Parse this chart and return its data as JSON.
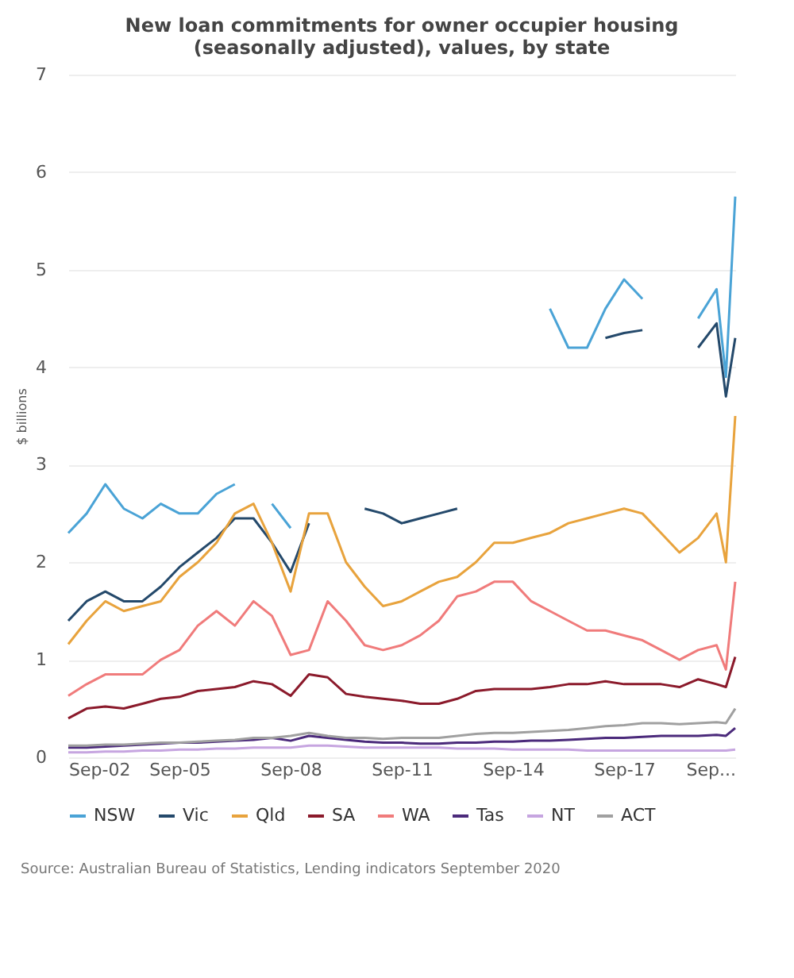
{
  "chart_data": {
    "type": "line",
    "title": [
      "New loan commitments for owner occupier housing",
      "(seasonally adjusted), values, by state"
    ],
    "ylabel": "$ billions",
    "x": [
      "2002-09",
      "2003-03",
      "2003-09",
      "2004-03",
      "2004-09",
      "2005-03",
      "2005-09",
      "2006-03",
      "2006-09",
      "2007-03",
      "2007-09",
      "2008-03",
      "2008-09",
      "2009-03",
      "2009-09",
      "2010-03",
      "2010-09",
      "2011-03",
      "2011-09",
      "2012-03",
      "2012-09",
      "2013-03",
      "2013-09",
      "2014-03",
      "2014-09",
      "2015-03",
      "2015-09",
      "2016-03",
      "2016-09",
      "2017-03",
      "2017-09",
      "2018-03",
      "2018-09",
      "2019-03",
      "2019-09",
      "2020-03",
      "2020-06",
      "2020-09"
    ],
    "series": [
      {
        "name": "NSW",
        "color": "#4aa3d6",
        "values": [
          2.3,
          2.5,
          2.8,
          2.55,
          2.45,
          2.6,
          2.5,
          2.5,
          2.7,
          2.8,
          null,
          2.6,
          2.35,
          null,
          null,
          null,
          null,
          null,
          null,
          null,
          null,
          null,
          null,
          null,
          null,
          null,
          4.6,
          4.2,
          4.2,
          4.6,
          4.9,
          4.7,
          null,
          null,
          4.5,
          4.8,
          3.9,
          5.75
        ]
      },
      {
        "name": "Vic",
        "color": "#24496b",
        "values": [
          1.4,
          1.6,
          1.7,
          1.6,
          1.6,
          1.75,
          1.95,
          2.1,
          2.25,
          2.45,
          2.45,
          2.2,
          1.9,
          2.4,
          null,
          null,
          2.55,
          2.5,
          2.4,
          2.45,
          2.5,
          2.55,
          null,
          null,
          null,
          null,
          null,
          null,
          null,
          4.3,
          4.35,
          4.38,
          null,
          null,
          4.2,
          4.45,
          3.7,
          4.3
        ]
      },
      {
        "name": "Qld",
        "color": "#e8a33d",
        "values": [
          1.16,
          1.4,
          1.6,
          1.5,
          1.55,
          1.6,
          1.85,
          2.0,
          2.2,
          2.5,
          2.6,
          2.2,
          1.7,
          2.5,
          2.5,
          2.0,
          1.75,
          1.55,
          1.6,
          1.7,
          1.8,
          1.85,
          2.0,
          2.2,
          2.2,
          2.25,
          2.3,
          2.4,
          2.45,
          2.5,
          2.55,
          2.5,
          2.3,
          2.1,
          2.25,
          2.5,
          2.0,
          3.5
        ]
      },
      {
        "name": "SA",
        "color": "#8b1a2b",
        "values": [
          0.4,
          0.5,
          0.52,
          0.5,
          0.55,
          0.6,
          0.62,
          0.68,
          0.7,
          0.72,
          0.78,
          0.75,
          0.63,
          0.85,
          0.82,
          0.65,
          0.62,
          0.6,
          0.58,
          0.55,
          0.55,
          0.6,
          0.68,
          0.7,
          0.7,
          0.7,
          0.72,
          0.75,
          0.75,
          0.78,
          0.75,
          0.75,
          0.75,
          0.72,
          0.8,
          0.75,
          0.72,
          1.03
        ]
      },
      {
        "name": "WA",
        "color": "#f07b7b",
        "values": [
          0.63,
          0.75,
          0.85,
          0.85,
          0.85,
          1.0,
          1.1,
          1.35,
          1.5,
          1.35,
          1.6,
          1.45,
          1.05,
          1.1,
          1.6,
          1.4,
          1.15,
          1.1,
          1.15,
          1.25,
          1.4,
          1.65,
          1.7,
          1.8,
          1.8,
          1.6,
          1.5,
          1.4,
          1.3,
          1.3,
          1.25,
          1.2,
          1.1,
          1.0,
          1.1,
          1.15,
          0.9,
          1.8
        ]
      },
      {
        "name": "Tas",
        "color": "#4b2a7b",
        "values": [
          0.1,
          0.1,
          0.11,
          0.12,
          0.13,
          0.14,
          0.15,
          0.15,
          0.16,
          0.17,
          0.18,
          0.2,
          0.17,
          0.22,
          0.2,
          0.18,
          0.16,
          0.15,
          0.15,
          0.14,
          0.14,
          0.15,
          0.15,
          0.16,
          0.16,
          0.17,
          0.17,
          0.18,
          0.19,
          0.2,
          0.2,
          0.21,
          0.22,
          0.22,
          0.22,
          0.23,
          0.22,
          0.3
        ]
      },
      {
        "name": "NT",
        "color": "#c6a5e0",
        "values": [
          0.05,
          0.05,
          0.06,
          0.06,
          0.07,
          0.07,
          0.08,
          0.08,
          0.09,
          0.09,
          0.1,
          0.1,
          0.1,
          0.12,
          0.12,
          0.11,
          0.1,
          0.1,
          0.1,
          0.1,
          0.1,
          0.09,
          0.09,
          0.09,
          0.08,
          0.08,
          0.08,
          0.08,
          0.07,
          0.07,
          0.07,
          0.07,
          0.07,
          0.07,
          0.07,
          0.07,
          0.07,
          0.08
        ]
      },
      {
        "name": "ACT",
        "color": "#a0a0a0",
        "values": [
          0.12,
          0.12,
          0.13,
          0.13,
          0.14,
          0.15,
          0.15,
          0.16,
          0.17,
          0.18,
          0.2,
          0.2,
          0.22,
          0.25,
          0.22,
          0.2,
          0.2,
          0.19,
          0.2,
          0.2,
          0.2,
          0.22,
          0.24,
          0.25,
          0.25,
          0.26,
          0.27,
          0.28,
          0.3,
          0.32,
          0.33,
          0.35,
          0.35,
          0.34,
          0.35,
          0.36,
          0.35,
          0.5
        ]
      }
    ],
    "xlim": [
      "2002-09",
      "2020-09"
    ],
    "xticks": [
      {
        "value": "2002-09",
        "label": "Sep-02"
      },
      {
        "value": "2005-09",
        "label": "Sep-05"
      },
      {
        "value": "2008-09",
        "label": "Sep-08"
      },
      {
        "value": "2011-09",
        "label": "Sep-11"
      },
      {
        "value": "2014-09",
        "label": "Sep-14"
      },
      {
        "value": "2017-09",
        "label": "Sep-17"
      },
      {
        "value": "2020-09",
        "label": "Sep..."
      }
    ],
    "ylim": [
      0,
      7
    ],
    "yticks": [
      0,
      1,
      2,
      3,
      4,
      5,
      6,
      7
    ],
    "grid": "y",
    "legend": "bottom",
    "line_style": "solid",
    "marker": "none",
    "annotations": [
      "Source: Australian Bureau of Statistics, Lending indicators September 2020"
    ]
  }
}
